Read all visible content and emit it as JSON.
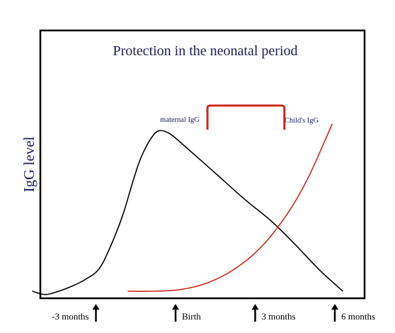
{
  "chart_data": {
    "type": "line",
    "title": "Protection in the neonatal period",
    "xlabel": "",
    "ylabel": "IgG level",
    "x_ticks": [
      {
        "label": "-3 months",
        "month": -3
      },
      {
        "label": "Birth",
        "month": 0
      },
      {
        "label": "3 months",
        "month": 3
      },
      {
        "label": "6 months",
        "month": 6
      }
    ],
    "series": [
      {
        "name": "maternal IgG",
        "color": "#000000",
        "points": [
          [
            -5.4,
            0.0
          ],
          [
            -4.9,
            -0.02
          ],
          [
            -4.4,
            0.0
          ],
          [
            -3.9,
            0.03
          ],
          [
            -3.4,
            0.07
          ],
          [
            -2.9,
            0.13
          ],
          [
            -2.5,
            0.25
          ],
          [
            -2.0,
            0.45
          ],
          [
            -1.6,
            0.66
          ],
          [
            -1.3,
            0.8
          ],
          [
            -0.9,
            0.92
          ],
          [
            -0.6,
            0.96
          ],
          [
            -0.2,
            0.94
          ],
          [
            0.4,
            0.86
          ],
          [
            1.4,
            0.72
          ],
          [
            2.6,
            0.55
          ],
          [
            3.6,
            0.42
          ],
          [
            4.5,
            0.28
          ],
          [
            5.4,
            0.13
          ],
          [
            6.3,
            0.0
          ]
        ]
      },
      {
        "name": "Child's IgG",
        "color": "#cc2a1f",
        "points": [
          [
            -1.8,
            0.0
          ],
          [
            -0.8,
            0.0
          ],
          [
            0.2,
            0.01
          ],
          [
            1.2,
            0.05
          ],
          [
            2.2,
            0.13
          ],
          [
            3.2,
            0.26
          ],
          [
            4.2,
            0.46
          ],
          [
            5.0,
            0.68
          ],
          [
            5.9,
            1.0
          ]
        ]
      }
    ],
    "annotations": [
      {
        "type": "bracket",
        "from_month": 1.2,
        "to_month": 4.1,
        "color": "#cc2a1f"
      }
    ]
  }
}
